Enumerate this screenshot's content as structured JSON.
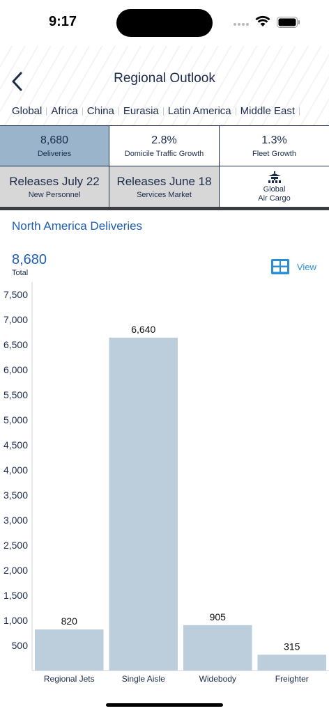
{
  "status_bar": {
    "time": "9:17",
    "icons": [
      "cellular-signal-icon",
      "wifi-icon",
      "battery-icon"
    ]
  },
  "header": {
    "title": "Regional Outlook",
    "back_icon": "chevron-left-icon",
    "regions": [
      "Global",
      "Africa",
      "China",
      "Eurasia",
      "Latin America",
      "Middle East"
    ]
  },
  "metrics": [
    {
      "value": "8,680",
      "label": "Deliveries",
      "selected": true
    },
    {
      "value": "2.8%",
      "label": "Domicile Traffic Growth"
    },
    {
      "value": "1.3%",
      "label": "Fleet Growth"
    },
    {
      "value": "Releases July 22",
      "label": "New Personnel"
    },
    {
      "value": "Releases June 18",
      "label": "Services Market"
    },
    {
      "icon": "building-network-icon",
      "label_line1": "Global",
      "label_line2": "Air Cargo"
    }
  ],
  "section": {
    "title": "North America Deliveries",
    "total_value": "8,680",
    "total_label": "Total",
    "view_label": "View",
    "view_icon": "grid-view-icon"
  },
  "colors": {
    "accent": "#1f5fb0",
    "selected_cell": "#9ab4cc",
    "grey_cell": "#d7d7d7",
    "bar": "#bccedc",
    "text_dark": "#1b2b4a"
  },
  "chart_data": {
    "type": "bar",
    "categories": [
      "Regional Jets",
      "Single Aisle",
      "Widebody",
      "Freighter"
    ],
    "values": [
      820,
      6640,
      905,
      315
    ],
    "value_labels": [
      "820",
      "6,640",
      "905",
      "315"
    ],
    "yticks": [
      500,
      1000,
      1500,
      2000,
      2500,
      3000,
      3500,
      4000,
      4500,
      5000,
      5500,
      6000,
      6500,
      7000,
      7500
    ],
    "ytick_labels": [
      "500",
      "1,000",
      "1,500",
      "2,000",
      "2,500",
      "3,000",
      "3,500",
      "4,000",
      "4,500",
      "5,000",
      "5,500",
      "6,000",
      "6,500",
      "7,000",
      "7,500"
    ],
    "ylim": [
      0,
      7750
    ],
    "grid": false,
    "legend": "none"
  }
}
